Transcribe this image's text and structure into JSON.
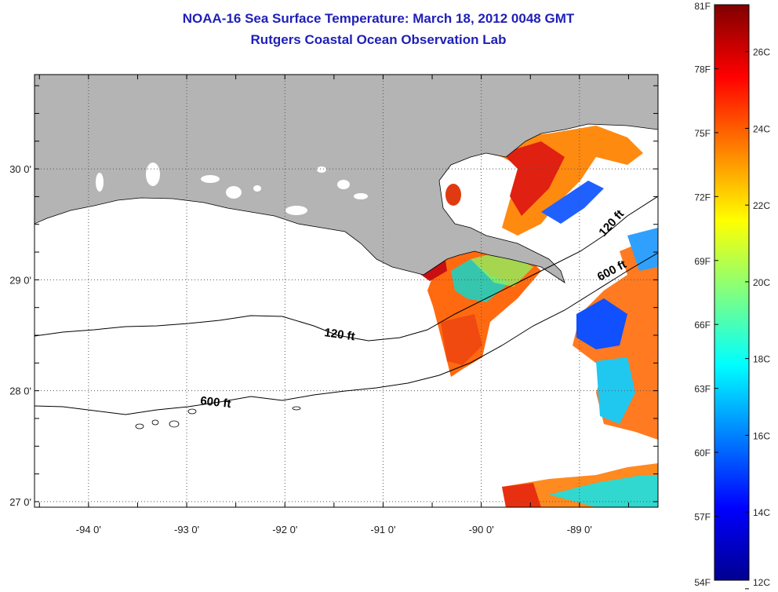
{
  "title_line1": "NOAA-16 Sea Surface Temperature:  March 18, 2012 0048 GMT",
  "title_line2": "Rutgers Coastal Ocean Observation Lab",
  "map": {
    "lon_ticks": [
      {
        "value": -94,
        "label": "-94 0'"
      },
      {
        "value": -93,
        "label": "-93 0'"
      },
      {
        "value": -92,
        "label": "-92 0'"
      },
      {
        "value": -91,
        "label": "-91 0'"
      },
      {
        "value": -90,
        "label": "-90 0'"
      },
      {
        "value": -89,
        "label": "-89 0'"
      }
    ],
    "lat_ticks": [
      {
        "value": 30,
        "label": "30 0'"
      },
      {
        "value": 29,
        "label": "29 0'"
      },
      {
        "value": 28,
        "label": "28 0'"
      },
      {
        "value": 27,
        "label": "27 0'"
      }
    ],
    "lon_range": [
      -94.55,
      -88.2
    ],
    "lat_range": [
      26.95,
      30.85
    ],
    "contour_labels": {
      "c120_west": "120 ft",
      "c600_west": "600 ft",
      "c120_east": "120 ft",
      "c600_east": "600 ft"
    },
    "colors": {
      "land": "#b4b4b4",
      "ocean": "#ffffff",
      "grid": "#555555",
      "coast": "#000000"
    }
  },
  "colorbar": {
    "fahrenheit": [
      {
        "value": 81,
        "label": "81F"
      },
      {
        "value": 78,
        "label": "78F"
      },
      {
        "value": 75,
        "label": "75F"
      },
      {
        "value": 72,
        "label": "72F"
      },
      {
        "value": 69,
        "label": "69F"
      },
      {
        "value": 66,
        "label": "66F"
      },
      {
        "value": 63,
        "label": "63F"
      },
      {
        "value": 60,
        "label": "60F"
      },
      {
        "value": 57,
        "label": "57F"
      },
      {
        "value": 54,
        "label": "54F"
      }
    ],
    "celsius": [
      {
        "value": 26,
        "label": "26C"
      },
      {
        "value": 24,
        "label": "24C"
      },
      {
        "value": 22,
        "label": "22C"
      },
      {
        "value": 20,
        "label": "20C"
      },
      {
        "value": 18,
        "label": "18C"
      },
      {
        "value": 16,
        "label": "16C"
      },
      {
        "value": 14,
        "label": "14C"
      },
      {
        "value": 12,
        "label": "12C"
      }
    ],
    "stops": [
      "#00008f",
      "#0000ff",
      "#0080ff",
      "#00ffff",
      "#80ff80",
      "#ffff00",
      "#ff8000",
      "#ff0000",
      "#800000"
    ]
  }
}
